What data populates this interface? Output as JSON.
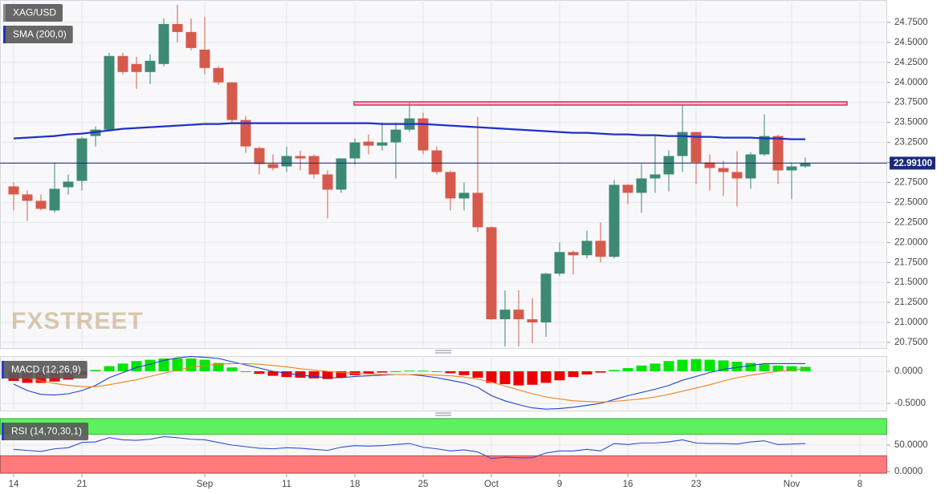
{
  "chart_data": [
    {
      "type": "candlestick",
      "label": "XAG/USD",
      "categories": [
        "14",
        null,
        null,
        null,
        null,
        "21",
        null,
        null,
        null,
        null,
        null,
        null,
        null,
        null,
        "Sep",
        null,
        null,
        null,
        null,
        null,
        "11",
        null,
        null,
        null,
        null,
        "18",
        null,
        null,
        null,
        null,
        "25",
        null,
        null,
        null,
        null,
        "Oct",
        null,
        null,
        null,
        null,
        "9",
        null,
        null,
        null,
        null,
        "16",
        null,
        null,
        null,
        null,
        "23",
        null,
        null,
        null,
        null,
        null,
        null,
        "Nov",
        null,
        null,
        null,
        null,
        "8",
        null
      ],
      "open": [
        22.7,
        22.6,
        22.52,
        22.4,
        22.69,
        22.77,
        23.33,
        23.41,
        24.33,
        24.23,
        24.13,
        24.23,
        24.73,
        24.63,
        24.41,
        24.18,
        24.0,
        23.53,
        23.18,
        22.98,
        22.95,
        23.08,
        23.08,
        22.85,
        22.66,
        23.05,
        23.26,
        23.21,
        23.25,
        23.41,
        23.55,
        23.15,
        22.88,
        22.55,
        22.62,
        22.19,
        21.04,
        21.16,
        21.04,
        21.0,
        21.61,
        21.88,
        21.84,
        22.02,
        21.82,
        22.72,
        22.62,
        22.8,
        22.85,
        23.08,
        23.38,
        23.0,
        22.93,
        22.88,
        22.8,
        23.1,
        23.33,
        22.9,
        22.95,
        null,
        null,
        null,
        null,
        null
      ],
      "high": [
        22.75,
        22.65,
        22.6,
        23.0,
        22.85,
        23.32,
        23.45,
        24.37,
        24.37,
        24.32,
        24.35,
        24.8,
        24.97,
        24.8,
        24.82,
        24.2,
        24.0,
        23.58,
        23.2,
        23.1,
        23.2,
        23.15,
        23.1,
        22.9,
        23.05,
        23.3,
        23.35,
        23.5,
        23.5,
        23.76,
        23.62,
        23.2,
        22.9,
        22.75,
        23.57,
        22.2,
        21.4,
        21.4,
        21.3,
        21.62,
        22.0,
        21.9,
        22.15,
        22.25,
        22.78,
        22.73,
        22.98,
        23.33,
        23.15,
        23.72,
        23.38,
        23.1,
        23.02,
        23.14,
        23.13,
        23.6,
        23.35,
        23.0,
        23.06,
        null,
        null,
        null,
        null,
        null
      ],
      "low": [
        22.4,
        22.27,
        22.4,
        22.37,
        22.6,
        22.65,
        23.2,
        23.4,
        24.1,
        23.92,
        23.98,
        24.2,
        24.5,
        24.4,
        24.1,
        23.97,
        23.5,
        23.12,
        22.85,
        22.9,
        22.88,
        22.9,
        22.8,
        22.3,
        22.62,
        22.97,
        23.1,
        23.15,
        22.8,
        23.38,
        23.1,
        22.85,
        22.4,
        22.4,
        22.13,
        21.03,
        20.7,
        20.7,
        20.74,
        20.82,
        21.58,
        21.6,
        21.8,
        21.75,
        21.8,
        22.48,
        22.37,
        22.62,
        22.64,
        22.88,
        22.73,
        22.65,
        22.58,
        22.45,
        22.67,
        23.08,
        22.73,
        22.54,
        22.93,
        null,
        null,
        null,
        null,
        null
      ],
      "close": [
        22.6,
        22.52,
        22.42,
        22.67,
        22.76,
        23.3,
        23.41,
        24.33,
        24.13,
        24.13,
        24.27,
        24.73,
        24.63,
        24.43,
        24.18,
        24.0,
        23.53,
        23.2,
        22.98,
        22.93,
        23.08,
        23.05,
        22.85,
        22.66,
        23.05,
        23.25,
        23.21,
        23.25,
        23.41,
        23.55,
        23.15,
        22.88,
        22.55,
        22.62,
        22.19,
        21.04,
        21.16,
        21.04,
        21.0,
        21.61,
        21.88,
        21.84,
        22.02,
        21.82,
        22.72,
        22.62,
        22.8,
        22.85,
        23.08,
        23.38,
        23.0,
        22.93,
        22.88,
        22.8,
        23.1,
        23.33,
        22.9,
        22.95,
        22.99,
        null,
        null,
        null,
        null,
        null
      ],
      "colors": {
        "up": "#3d8a73",
        "down": "#d65a4c"
      },
      "overlays": [
        {
          "label": "SMA (200,0)",
          "color": "#1f30c8",
          "values": [
            23.3,
            23.31,
            23.32,
            23.33,
            23.35,
            23.36,
            23.38,
            23.4,
            23.42,
            23.43,
            23.44,
            23.45,
            23.46,
            23.47,
            23.48,
            23.48,
            23.49,
            23.49,
            23.49,
            23.49,
            23.49,
            23.49,
            23.49,
            23.49,
            23.49,
            23.49,
            23.49,
            23.48,
            23.48,
            23.48,
            23.48,
            23.47,
            23.46,
            23.45,
            23.44,
            23.43,
            23.42,
            23.41,
            23.4,
            23.39,
            23.38,
            23.37,
            23.37,
            23.36,
            23.35,
            23.35,
            23.34,
            23.34,
            23.33,
            23.33,
            23.32,
            23.32,
            23.31,
            23.31,
            23.31,
            23.3,
            23.3,
            23.29,
            23.29,
            null,
            null,
            null,
            null,
            null
          ]
        }
      ],
      "last_price": {
        "value": 22.991,
        "label": "22.99100",
        "color": "#1a2a80"
      },
      "ylim": [
        20.67,
        25.03
      ],
      "yticks": [
        {
          "value": 20.75,
          "label": "20.7500"
        },
        {
          "value": 21,
          "label": "21.0000"
        },
        {
          "value": 21.25,
          "label": "21.2500"
        },
        {
          "value": 21.5,
          "label": "21.5000"
        },
        {
          "value": 21.75,
          "label": "21.7500"
        },
        {
          "value": 22,
          "label": "22.0000"
        },
        {
          "value": 22.25,
          "label": "22.2500"
        },
        {
          "value": 22.5,
          "label": "22.5000"
        },
        {
          "value": 22.75,
          "label": "22.7500"
        },
        {
          "value": 23,
          "label": "23.0000"
        },
        {
          "value": 23.25,
          "label": "23.2500"
        },
        {
          "value": 23.5,
          "label": "23.5000"
        },
        {
          "value": 23.75,
          "label": "23.7500"
        },
        {
          "value": 24,
          "label": "24.0000"
        },
        {
          "value": 24.25,
          "label": "24.2500"
        },
        {
          "value": 24.5,
          "label": "24.5000"
        },
        {
          "value": 24.75,
          "label": "24.7500"
        }
      ],
      "grid": true
    },
    {
      "type": "macd",
      "label": "MACD (12,26,9)",
      "histogram": {
        "colors": {
          "up": "#00e600",
          "down": "#ee0000"
        },
        "values": [
          -0.15,
          -0.18,
          -0.18,
          -0.16,
          -0.13,
          -0.06,
          0.02,
          0.08,
          0.12,
          0.16,
          0.18,
          0.2,
          0.2,
          0.2,
          0.18,
          0.13,
          0.06,
          0.0,
          -0.04,
          -0.07,
          -0.09,
          -0.1,
          -0.11,
          -0.12,
          -0.1,
          -0.06,
          -0.04,
          -0.02,
          0.0,
          0.01,
          0.01,
          0.0,
          -0.03,
          -0.06,
          -0.1,
          -0.18,
          -0.2,
          -0.22,
          -0.21,
          -0.18,
          -0.14,
          -0.09,
          -0.05,
          -0.02,
          0.02,
          0.05,
          0.09,
          0.12,
          0.16,
          0.18,
          0.19,
          0.18,
          0.17,
          0.15,
          0.13,
          0.11,
          0.09,
          0.08,
          0.07,
          null,
          null,
          null,
          null,
          null
        ]
      },
      "series": [
        {
          "color": "#2040d0",
          "values": [
            -0.2,
            -0.3,
            -0.36,
            -0.37,
            -0.35,
            -0.3,
            -0.22,
            -0.1,
            -0.02,
            0.06,
            0.11,
            0.17,
            0.21,
            0.23,
            0.22,
            0.2,
            0.15,
            0.1,
            0.05,
            0.0,
            -0.03,
            -0.06,
            -0.08,
            -0.1,
            -0.1,
            -0.08,
            -0.07,
            -0.06,
            -0.05,
            -0.05,
            -0.07,
            -0.1,
            -0.14,
            -0.18,
            -0.25,
            -0.38,
            -0.46,
            -0.52,
            -0.57,
            -0.59,
            -0.58,
            -0.56,
            -0.53,
            -0.5,
            -0.44,
            -0.38,
            -0.33,
            -0.28,
            -0.22,
            -0.14,
            -0.08,
            -0.02,
            0.03,
            0.06,
            0.09,
            0.12,
            0.12,
            0.12,
            0.12,
            null,
            null,
            null,
            null,
            null
          ]
        },
        {
          "color": "#f08020",
          "values": [
            -0.05,
            -0.1,
            -0.15,
            -0.19,
            -0.22,
            -0.24,
            -0.24,
            -0.21,
            -0.17,
            -0.13,
            -0.08,
            -0.03,
            0.02,
            0.06,
            0.09,
            0.11,
            0.12,
            0.12,
            0.11,
            0.09,
            0.07,
            0.04,
            0.02,
            0.0,
            -0.02,
            -0.03,
            -0.04,
            -0.05,
            -0.05,
            -0.05,
            -0.05,
            -0.06,
            -0.07,
            -0.09,
            -0.12,
            -0.17,
            -0.23,
            -0.29,
            -0.35,
            -0.4,
            -0.43,
            -0.46,
            -0.47,
            -0.48,
            -0.47,
            -0.45,
            -0.43,
            -0.4,
            -0.36,
            -0.31,
            -0.26,
            -0.21,
            -0.15,
            -0.1,
            -0.06,
            -0.03,
            0.0,
            0.02,
            0.04,
            null,
            null,
            null,
            null,
            null
          ]
        }
      ],
      "ylim": [
        -0.625,
        0.2375
      ],
      "yticks": [
        {
          "value": -0.5,
          "label": "-0.5000"
        },
        {
          "value": 0,
          "label": "0.0000"
        }
      ],
      "grid": true
    },
    {
      "type": "rsi",
      "label": "RSI (14,70,30,1)",
      "overbought": 70,
      "oversold": 30,
      "band_colors": {
        "overbought": "#5cf25c",
        "oversold": "#ff7b7b"
      },
      "series": [
        {
          "color": "#2f4fd0",
          "values": [
            42,
            40,
            38,
            43,
            45,
            55,
            56,
            64,
            60,
            59,
            61,
            66,
            64,
            61,
            60,
            55,
            50,
            47,
            44,
            43,
            45,
            44,
            42,
            40,
            46,
            49,
            48,
            49,
            51,
            53,
            46,
            43,
            39,
            41,
            37,
            25,
            27,
            26,
            26,
            35,
            39,
            39,
            42,
            39,
            53,
            51,
            54,
            54,
            56,
            60,
            54,
            53,
            53,
            52,
            56,
            58,
            51,
            52,
            53,
            null,
            null,
            null,
            null,
            null
          ]
        }
      ],
      "ylim": [
        -4.5,
        101.5
      ],
      "yticks": [
        {
          "value": 0,
          "label": "0.0000"
        },
        {
          "value": 50,
          "label": "50.0000"
        }
      ],
      "grid": true
    }
  ],
  "watermark": "FXSTREET"
}
